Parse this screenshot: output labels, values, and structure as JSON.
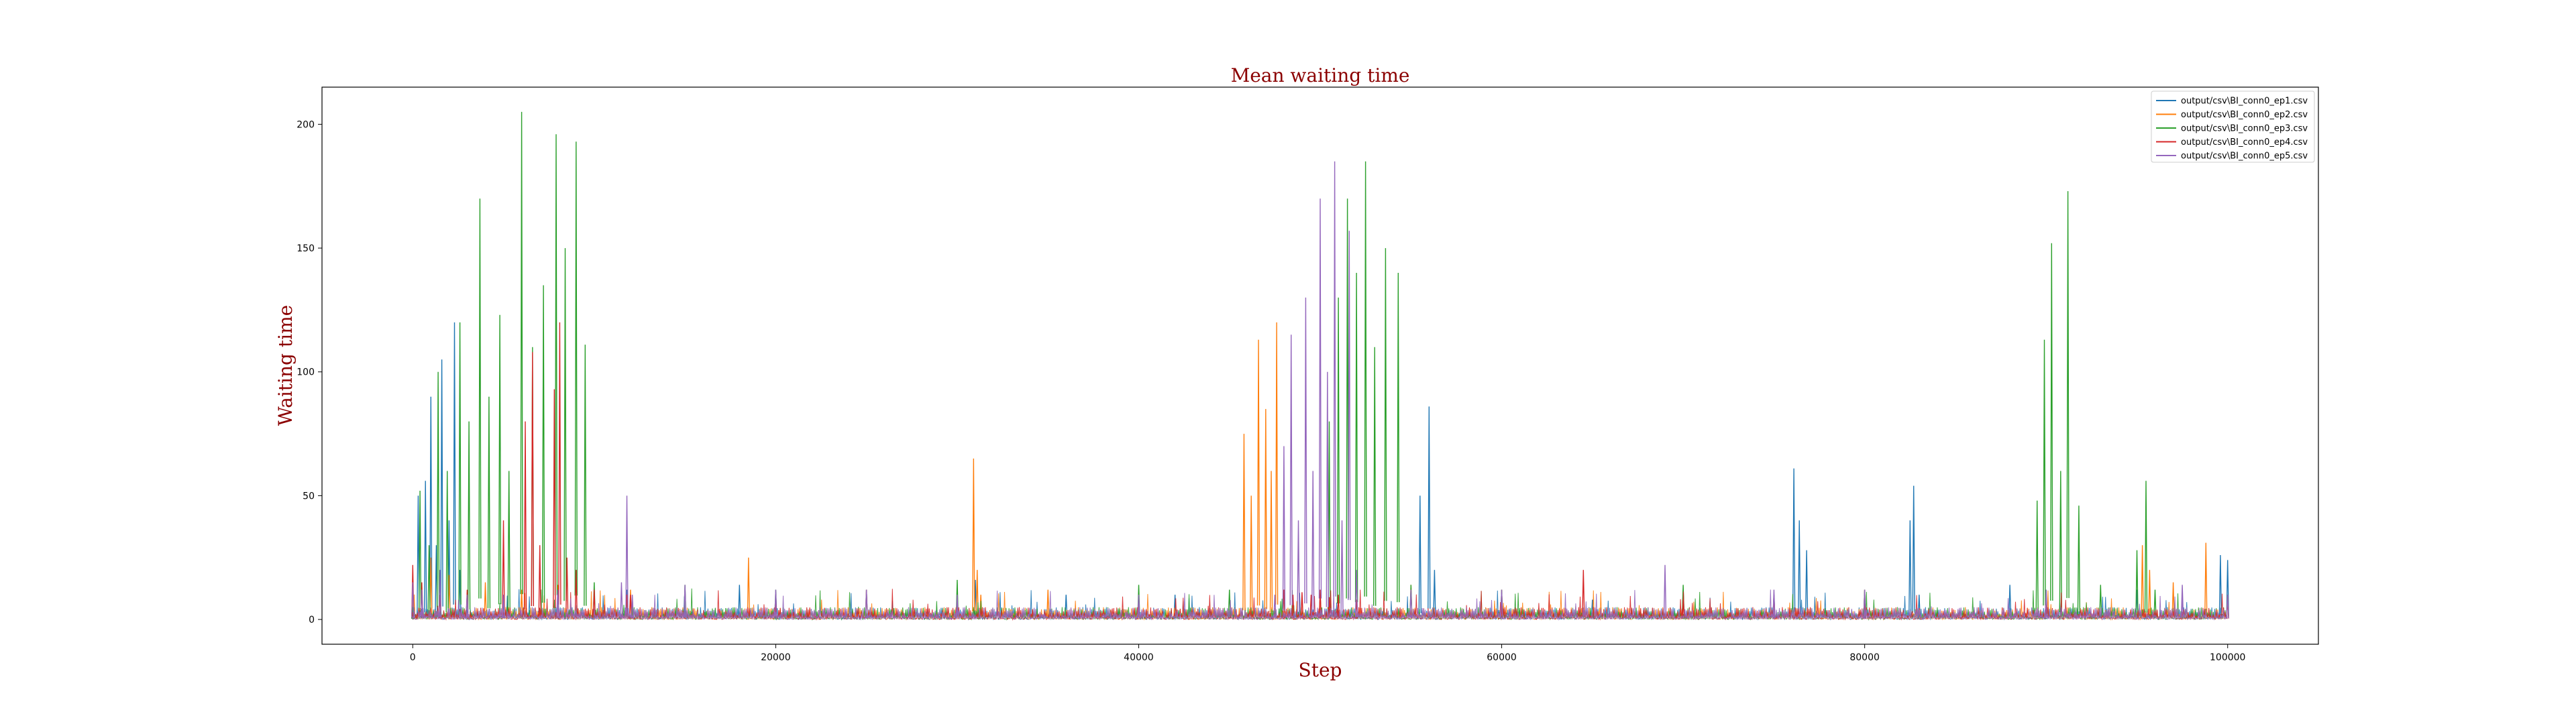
{
  "chart_data": {
    "type": "line",
    "title": "Mean waiting time",
    "xlabel": "Step",
    "ylabel": "Waiting time",
    "xlim": [
      -5000,
      105000
    ],
    "ylim": [
      -10,
      215
    ],
    "x_ticks": [
      0,
      20000,
      40000,
      60000,
      80000,
      100000
    ],
    "y_ticks": [
      0,
      50,
      100,
      150,
      200
    ],
    "grid": false,
    "legend_position": "top-right",
    "baseline_noise": 5,
    "series": [
      {
        "name": "output/csv\\BI_conn0_ep1.csv",
        "color": "#1f77b4",
        "x": [
          0,
          300,
          700,
          1000,
          1300,
          1600,
          2000,
          2300,
          2600,
          3000,
          5000,
          11800,
          18000,
          25000,
          31000,
          36000,
          42000,
          50000,
          55500,
          56000,
          56300,
          60000,
          65000,
          70000,
          75000,
          76100,
          76400,
          76800,
          80000,
          82500,
          82700,
          83000,
          88000,
          95000,
          99600,
          100000
        ],
        "y": [
          10,
          50,
          56,
          90,
          30,
          105,
          40,
          120,
          20,
          10,
          8,
          12,
          14,
          12,
          16,
          10,
          10,
          10,
          50,
          86,
          20,
          10,
          8,
          12,
          10,
          61,
          40,
          28,
          8,
          40,
          54,
          10,
          14,
          12,
          26,
          24
        ]
      },
      {
        "name": "output/csv\\BI_conn0_ep2.csv",
        "color": "#ff7f0e",
        "x": [
          0,
          1000,
          2000,
          4000,
          6000,
          8000,
          12000,
          18500,
          25000,
          30900,
          31100,
          31300,
          35000,
          40000,
          45800,
          46200,
          46600,
          47000,
          47300,
          47600,
          48000,
          50000,
          55000,
          60000,
          70000,
          80000,
          90000,
          95300,
          95700,
          97000,
          98800,
          100000
        ],
        "y": [
          10,
          25,
          18,
          15,
          12,
          14,
          12,
          25,
          12,
          65,
          20,
          10,
          12,
          10,
          75,
          50,
          113,
          85,
          60,
          120,
          12,
          10,
          14,
          12,
          10,
          12,
          10,
          30,
          20,
          15,
          31,
          10
        ]
      },
      {
        "name": "output/csv\\BI_conn0_ep3.csv",
        "color": "#2ca02c",
        "x": [
          0,
          400,
          900,
          1400,
          1900,
          2600,
          3100,
          3700,
          4200,
          4800,
          5300,
          6000,
          6600,
          7200,
          7900,
          8400,
          9000,
          9500,
          10000,
          15000,
          20000,
          30000,
          40000,
          45000,
          50500,
          51000,
          51500,
          52000,
          52500,
          53000,
          53600,
          54300,
          55000,
          60000,
          70000,
          80000,
          89500,
          89900,
          90300,
          90800,
          91200,
          91800,
          93000,
          95000,
          95500,
          96000,
          100000
        ],
        "y": [
          5,
          52,
          30,
          100,
          60,
          120,
          80,
          170,
          90,
          123,
          60,
          205,
          110,
          135,
          196,
          150,
          193,
          111,
          15,
          14,
          12,
          16,
          14,
          12,
          80,
          130,
          170,
          140,
          185,
          110,
          150,
          140,
          14,
          12,
          14,
          12,
          48,
          113,
          152,
          60,
          173,
          46,
          14,
          28,
          56,
          12,
          10
        ]
      },
      {
        "name": "output/csv\\BI_conn0_ep4.csv",
        "color": "#d62728",
        "x": [
          0,
          500,
          1500,
          3000,
          5000,
          6200,
          6600,
          7000,
          7800,
          8100,
          8500,
          9000,
          10000,
          11800,
          12000,
          20000,
          30000,
          40000,
          48000,
          48500,
          49000,
          49500,
          50000,
          50500,
          51000,
          52000,
          60000,
          64500,
          70000,
          75000,
          80000,
          90000,
          100000
        ],
        "y": [
          22,
          15,
          10,
          12,
          40,
          80,
          108,
          30,
          93,
          120,
          25,
          20,
          12,
          10,
          10,
          8,
          8,
          8,
          12,
          10,
          11,
          10,
          12,
          9,
          10,
          8,
          8,
          20,
          8,
          10,
          8,
          8,
          8
        ]
      },
      {
        "name": "output/csv\\BI_conn0_ep5.csv",
        "color": "#9467bd",
        "x": [
          0,
          500,
          1500,
          3000,
          5000,
          8000,
          11500,
          11800,
          12100,
          15000,
          20000,
          25000,
          30000,
          40000,
          47500,
          48000,
          48400,
          48800,
          49200,
          49600,
          50000,
          50400,
          50800,
          51200,
          51600,
          52000,
          55000,
          60000,
          69000,
          75000,
          80000,
          90000,
          97500,
          100000
        ],
        "y": [
          15,
          12,
          20,
          10,
          10,
          12,
          15,
          50,
          10,
          14,
          12,
          12,
          10,
          10,
          10,
          70,
          115,
          40,
          130,
          60,
          170,
          100,
          185,
          40,
          157,
          20,
          12,
          12,
          22,
          12,
          12,
          12,
          14,
          10
        ]
      }
    ]
  }
}
